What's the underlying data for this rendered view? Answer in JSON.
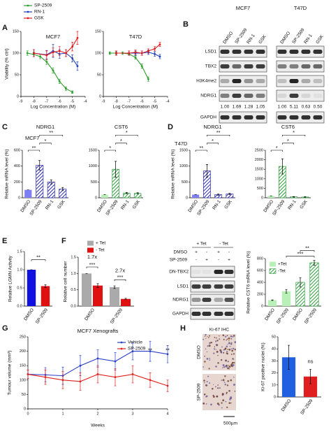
{
  "panels": [
    "A",
    "B",
    "C",
    "D",
    "E",
    "F",
    "G",
    "H"
  ],
  "chart_data": [
    {
      "type": "line",
      "title": "MCF7",
      "xlabel": "Log Concentration (M)",
      "ylabel": "Viability (% ctrl)",
      "xlim": [
        -9,
        -4
      ],
      "xticks": [
        -9,
        -8,
        -7,
        -6,
        -5,
        -4
      ],
      "ylim": [
        0,
        150
      ],
      "yticks": [
        0,
        50,
        100,
        150
      ],
      "legend": true,
      "series": [
        {
          "name": "SP-2509",
          "color": "#2ca02c",
          "x": [
            -8.5,
            -8,
            -7.5,
            -7,
            -6.5,
            -6,
            -5.5,
            -5
          ],
          "values": [
            100,
            97,
            92,
            80,
            60,
            35,
            18,
            10
          ],
          "errors": [
            5,
            5,
            5,
            6,
            6,
            5,
            4,
            3
          ]
        },
        {
          "name": "RN-1",
          "color": "#1f3fbf",
          "x": [
            -8,
            -7,
            -6.5,
            -6,
            -5.5,
            -5,
            -4.6
          ],
          "values": [
            100,
            96,
            105,
            98,
            100,
            88,
            70
          ],
          "errors": [
            8,
            10,
            15,
            10,
            8,
            8,
            10
          ]
        },
        {
          "name": "GSK",
          "color": "#e41a1c",
          "x": [
            -8,
            -7,
            -6.5,
            -6,
            -5.5,
            -5,
            -4.6
          ],
          "values": [
            100,
            95,
            102,
            105,
            100,
            115,
            135
          ],
          "errors": [
            8,
            10,
            10,
            10,
            8,
            10,
            15
          ]
        }
      ]
    },
    {
      "type": "line",
      "title": "T47D",
      "xlabel": "Log Concentration (M)",
      "xlim": [
        -9,
        -4
      ],
      "xticks": [
        -9,
        -8,
        -7,
        -6,
        -5,
        -4
      ],
      "ylim": [
        0,
        150
      ],
      "yticks": [
        0,
        50,
        100,
        150
      ],
      "series": [
        {
          "color": "#2ca02c",
          "x": [
            -8.5,
            -8,
            -7.5,
            -7,
            -6.5,
            -6,
            -5.5
          ],
          "values": [
            100,
            100,
            100,
            98,
            90,
            70,
            40
          ],
          "errors": [
            3,
            3,
            3,
            3,
            4,
            5,
            5
          ]
        },
        {
          "color": "#1f3fbf",
          "x": [
            -8,
            -7,
            -6.5,
            -6,
            -5.5,
            -5,
            -4.6
          ],
          "values": [
            100,
            100,
            100,
            100,
            102,
            98,
            92
          ],
          "errors": [
            5,
            5,
            5,
            5,
            5,
            5,
            5
          ]
        },
        {
          "color": "#e41a1c",
          "x": [
            -8,
            -7,
            -6.5,
            -6,
            -5.5,
            -5,
            -4.6
          ],
          "values": [
            100,
            100,
            102,
            100,
            105,
            110,
            120
          ],
          "errors": [
            5,
            5,
            5,
            5,
            5,
            5,
            5
          ]
        }
      ]
    },
    {
      "type": "bar",
      "title": "NDRG1",
      "subtitle": "MCF7",
      "ylabel": "Relative mRNA level (%)",
      "ylim": [
        0,
        600
      ],
      "yticks": [
        0,
        200,
        400,
        600
      ],
      "categories": [
        "DMSO",
        "SP-2509",
        "RN-1",
        "GSK"
      ],
      "values": [
        100,
        410,
        200,
        110
      ],
      "errors": [
        0,
        60,
        25,
        20
      ],
      "colors": [
        "#7f7ff5",
        "#2b2bb0",
        "#2b2bb0",
        "#2b2bb0"
      ],
      "hatched": [
        false,
        true,
        true,
        true
      ],
      "annotations": [
        "**",
        "*",
        "**"
      ]
    },
    {
      "type": "bar",
      "title": "CST6",
      "ylim": [
        0,
        1500
      ],
      "yticks": [
        0,
        500,
        1000,
        1500
      ],
      "categories": [
        "DMSO",
        "SP-2509",
        "RN-1",
        "GSK"
      ],
      "values": [
        100,
        900,
        150,
        140
      ],
      "errors": [
        0,
        250,
        20,
        20
      ],
      "colors": [
        "#b8f0b8",
        "#2e9e3e",
        "#2e9e3e",
        "#2e9e3e"
      ],
      "hatched": [
        false,
        true,
        true,
        true
      ],
      "annotations": [
        "*",
        "*",
        "*"
      ]
    },
    {
      "type": "bar",
      "title": "NDRG1",
      "subtitle": "T47D",
      "ylabel": "Relative mRNA level (%)",
      "ylim": [
        0,
        1500
      ],
      "yticks": [
        0,
        500,
        1000,
        1500
      ],
      "categories": [
        "DMSO",
        "SP-2509",
        "RN-1",
        "GSK"
      ],
      "values": [
        100,
        850,
        100,
        120
      ],
      "errors": [
        0,
        200,
        20,
        25
      ],
      "colors": [
        "#7f7ff5",
        "#2b2bb0",
        "#2b2bb0",
        "#2b2bb0"
      ],
      "hatched": [
        false,
        true,
        true,
        true
      ],
      "annotations": [
        "**",
        "*",
        "**"
      ]
    },
    {
      "type": "bar",
      "title": "CST6",
      "ylim": [
        0,
        2500
      ],
      "yticks": [
        0,
        500,
        1000,
        1500,
        2000,
        2500
      ],
      "categories": [
        "DMSO",
        "SP-2509",
        "RN-1",
        "GSK"
      ],
      "values": [
        100,
        1650,
        50,
        40
      ],
      "errors": [
        0,
        400,
        15,
        15
      ],
      "colors": [
        "#b8f0b8",
        "#2e9e3e",
        "#2e9e3e",
        "#2e9e3e"
      ],
      "hatched": [
        false,
        true,
        true,
        true
      ],
      "annotations": [
        "*",
        "*",
        "*"
      ]
    },
    {
      "type": "bar",
      "ylabel": "Relative LGMN Activity",
      "ylim": [
        0,
        1.5
      ],
      "yticks": [
        {
          "value": 0,
          "label": "0.0"
        },
        0.5,
        {
          "value": 1,
          "label": "1.0"
        },
        1.5
      ],
      "categories": [
        "DMSO",
        "SP-2509"
      ],
      "values": [
        1.0,
        0.55
      ],
      "errors": [
        0,
        0.04
      ],
      "colors": [
        "#1010e0",
        "#e01010"
      ],
      "hatched": [
        false,
        false
      ],
      "annotations": [
        "**"
      ]
    },
    {
      "type": "bar",
      "ylabel": "Relative cell number",
      "ylim": [
        0,
        1.5
      ],
      "yticks": [
        {
          "value": 0,
          "label": "0.0"
        },
        0.5,
        {
          "value": 1,
          "label": "1.0"
        },
        1.5
      ],
      "categories": [
        "DMSO",
        "SP-2509"
      ],
      "series": [
        {
          "name": "+ Tet",
          "color": "#aaaaaa",
          "values": [
            1.0,
            0.58
          ],
          "errors": [
            0,
            0.04
          ]
        },
        {
          "name": "- Tet",
          "color": "#e01010",
          "values": [
            0.63,
            0.22
          ],
          "errors": [
            0.06,
            0.02
          ]
        }
      ],
      "annotations": [
        "1.7x",
        "***",
        "2.7x",
        "***"
      ]
    },
    {
      "type": "bar",
      "ylabel": "Relative CST6 mRNA level (%)",
      "ylim": [
        0,
        800
      ],
      "yticks": [
        0,
        200,
        400,
        600,
        800
      ],
      "categories": [
        "DMSO",
        "SP-2509",
        "DMSO",
        "SP-2509"
      ],
      "values": [
        100,
        250,
        400,
        730
      ],
      "errors": [
        5,
        30,
        80,
        40
      ],
      "colors": [
        "#b8f0b8",
        "#b8f0b8",
        "#2e9e3e",
        "#2e9e3e"
      ],
      "hatched": [
        false,
        false,
        true,
        true
      ],
      "legend_items": [
        {
          "name": "+Tet",
          "color": "#b8f0b8",
          "hatched": false
        },
        {
          "name": "-Tet",
          "color": "#2e9e3e",
          "hatched": true
        }
      ],
      "annotations": [
        "***",
        "**"
      ]
    },
    {
      "type": "line",
      "title": "MCF7 Xenografts",
      "xlabel": "Weeks",
      "ylabel": "Tumour volume (mm³)",
      "xlim": [
        0,
        4
      ],
      "xticks": [
        0,
        1,
        2,
        3,
        4
      ],
      "ylim": [
        0,
        250
      ],
      "yticks": [
        0,
        50,
        100,
        150,
        200,
        250
      ],
      "legend": true,
      "series": [
        {
          "name": "Vehicle",
          "color": "#2a3fc8",
          "x": [
            0,
            0.5,
            1,
            1.5,
            2,
            2.5,
            3,
            3.5,
            4
          ],
          "values": [
            120,
            118,
            115,
            150,
            175,
            165,
            200,
            200,
            190
          ],
          "errors": [
            15,
            25,
            30,
            35,
            30,
            30,
            30,
            35,
            30
          ]
        },
        {
          "name": "SP-2509",
          "color": "#e0201c",
          "x": [
            0,
            0.5,
            1,
            1.5,
            2,
            2.5,
            3,
            3.5,
            4
          ],
          "values": [
            120,
            110,
            100,
            95,
            120,
            110,
            120,
            100,
            80
          ],
          "errors": [
            15,
            25,
            30,
            30,
            30,
            30,
            30,
            25,
            20
          ]
        }
      ],
      "annotations": [
        "**",
        "**"
      ]
    },
    {
      "type": "bar",
      "ylabel": "Ki-67 positive nuclei (%)",
      "ylim": [
        0,
        50
      ],
      "yticks": [
        0,
        10,
        20,
        30,
        40,
        50
      ],
      "categories": [
        "DMSO",
        "SP-2509"
      ],
      "values": [
        33,
        17
      ],
      "errors": [
        10,
        6
      ],
      "colors": [
        "#1f5fe0",
        "#e02020"
      ],
      "hatched": [
        false,
        false
      ],
      "annotations": [
        "ns"
      ]
    }
  ],
  "blots": [
    {
      "headers": [
        "MCF7",
        "T47D"
      ],
      "lanes": [
        "DMSO",
        "SP-2509",
        "RN-1",
        "GSK"
      ],
      "rows": [
        "LSD1",
        "TBX2",
        "H3K4me2",
        "NDRG1",
        "GAPDH"
      ],
      "quant": [
        [
          "1.00",
          "1.69",
          "1.28",
          "1.05"
        ],
        [
          "1.00",
          "5.11",
          "0.63",
          "0.50"
        ]
      ]
    },
    {
      "headers": [
        "+ Tet",
        "- Tet"
      ],
      "treatments": [
        {
          "name": "DMSO",
          "signs": [
            "+",
            "-",
            "+",
            "-"
          ]
        },
        {
          "name": "SP-2509",
          "signs": [
            "-",
            "+",
            "-",
            "+"
          ]
        }
      ],
      "rows": [
        "DN-TBX2",
        "LSD1",
        "NDRG1",
        "GAPDH"
      ]
    }
  ],
  "ihc": {
    "title": "Ki-67 IHC",
    "labels": [
      "DMSO",
      "SP-2509"
    ],
    "scale": "500µm"
  }
}
